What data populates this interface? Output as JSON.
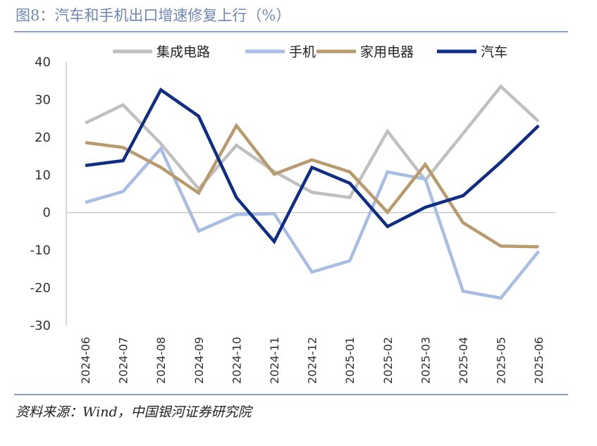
{
  "title": "图8：汽车和手机出口增速修复上行（%）",
  "source": "资料来源：Wind，中国银河证券研究院",
  "chart_data": {
    "type": "line",
    "title": "图8：汽车和手机出口增速修复上行（%）",
    "xlabel": "",
    "ylabel": "",
    "ylim": [
      -30,
      40
    ],
    "yticks": [
      40,
      30,
      20,
      10,
      0,
      -10,
      -20,
      -30
    ],
    "grid": false,
    "legend_position": "top",
    "categories": [
      "2024-06",
      "2024-07",
      "2024-08",
      "2024-09",
      "2024-10",
      "2024-11",
      "2024-12",
      "2025-01",
      "2025-02",
      "2025-03",
      "2025-04",
      "2025-05",
      "2025-06"
    ],
    "series": [
      {
        "name": "集成电路",
        "color": "#c0c0c0",
        "values": [
          23.8,
          28.6,
          18.3,
          6.3,
          17.9,
          10.9,
          5.4,
          4.0,
          21.6,
          8.6,
          21.0,
          33.5,
          24.2
        ]
      },
      {
        "name": "手机",
        "color": "#a8bde3",
        "values": [
          2.7,
          5.6,
          17.0,
          -4.9,
          -0.5,
          -0.3,
          -15.8,
          -12.8,
          10.8,
          8.9,
          -20.9,
          -22.7,
          -10.3
        ]
      },
      {
        "name": "家用电器",
        "color": "#b89a6d",
        "values": [
          18.6,
          17.3,
          12.0,
          5.2,
          23.1,
          10.2,
          14.0,
          10.8,
          0.1,
          12.8,
          -2.7,
          -8.9,
          -9.1
        ]
      },
      {
        "name": "汽车",
        "color": "#0f2d85",
        "values": [
          12.5,
          13.8,
          32.6,
          25.6,
          4.0,
          -7.7,
          12.0,
          7.8,
          -3.7,
          1.4,
          4.5,
          13.4,
          23.1
        ]
      }
    ]
  }
}
